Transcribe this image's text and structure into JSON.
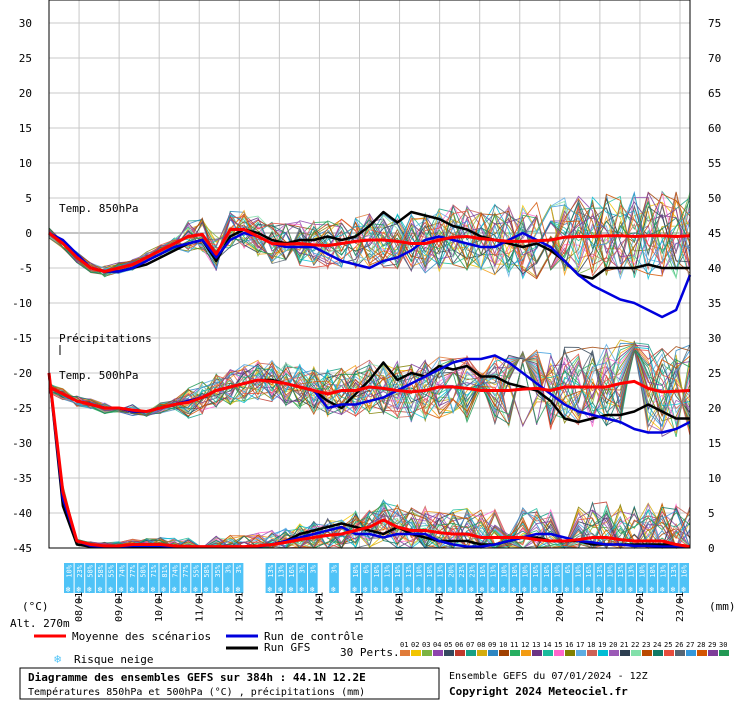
{
  "chart_data": {
    "type": "line",
    "title": "Diagramme des ensembles GEFS sur 384h : 44.1N 12.2E",
    "subtitle": "Températures 850hPa et 500hPa (°C) , précipitations (mm)",
    "run_info": "Ensemble GEFS du 07/01/2024 - 12Z",
    "copyright": "Copyright 2024 Meteociel.fr",
    "left_axis": {
      "unit": "(°C)",
      "ylim": [
        -45,
        30
      ],
      "ticks": [
        30,
        25,
        20,
        15,
        10,
        5,
        0,
        -5,
        -10,
        -15,
        -20,
        -25,
        -30,
        -35,
        -40,
        -45
      ]
    },
    "right_axis": {
      "unit": "(mm)",
      "ylim": [
        0,
        75
      ],
      "ticks": [
        75,
        70,
        65,
        60,
        55,
        50,
        45,
        40,
        35,
        30,
        25,
        20,
        15,
        10,
        5,
        0
      ]
    },
    "altitude": "Alt. 270m",
    "dates": [
      "08/01",
      "09/01",
      "10/01",
      "11/01",
      "12/01",
      "13/01",
      "14/01",
      "15/01",
      "16/01",
      "17/01",
      "18/01",
      "19/01",
      "20/01",
      "21/01",
      "22/01",
      "23/01"
    ],
    "labels": {
      "t850": "Temp. 850hPa",
      "precip": "Précipitations",
      "t500": "Temp. 500hPa"
    },
    "legend": {
      "mean": "Moyenne des scénarios",
      "control": "Run de contrôle",
      "gfs": "Run GFS",
      "snow": "Risque neige",
      "perts": "30 Perts."
    },
    "colors": {
      "mean": "#ff0000",
      "control": "#0000dd",
      "gfs": "#000000",
      "snow_band": "#4fc3f7",
      "grid": "#bbbbbb"
    },
    "member_codes": [
      "01",
      "02",
      "03",
      "04",
      "05",
      "06",
      "07",
      "08",
      "09",
      "10",
      "11",
      "12",
      "13",
      "14",
      "15",
      "16",
      "17",
      "18",
      "19",
      "20",
      "21",
      "22",
      "23",
      "24",
      "25",
      "26",
      "27",
      "28",
      "29",
      "30"
    ],
    "member_colors": [
      "#e07b39",
      "#f2c500",
      "#7cb342",
      "#8e44ad",
      "#34495e",
      "#c0392b",
      "#16a085",
      "#d4ac0d",
      "#2e86c1",
      "#a04000",
      "#27ae60",
      "#f39c12",
      "#6c3483",
      "#1abc9c",
      "#ff66cc",
      "#808000",
      "#5dade2",
      "#cd6155",
      "#00bcd4",
      "#9b59b6",
      "#2c3e50",
      "#82e0aa",
      "#ba4a00",
      "#117a65",
      "#e74c3c",
      "#566573",
      "#3498db",
      "#d35400",
      "#7d3c98",
      "#229954"
    ],
    "snow_risk_percent": [
      "10%",
      "23%",
      "58%",
      "58%",
      "55%",
      "74%",
      "77%",
      "58%",
      "71%",
      "81%",
      "74%",
      "77%",
      "55%",
      "58%",
      "35%",
      "3%",
      "3%",
      "",
      "",
      "13%",
      "13%",
      "16%",
      "3%",
      "3%",
      "",
      "3%",
      "",
      "10%",
      "6%",
      "10%",
      "13%",
      "10%",
      "13%",
      "10%",
      "10%",
      "13%",
      "20%",
      "23%",
      "23%",
      "16%",
      "13%",
      "10%",
      "10%",
      "10%",
      "16%",
      "10%",
      "10%",
      "6%",
      "10%",
      "16%",
      "13%",
      "10%",
      "13%",
      "13%",
      "10%",
      "10%",
      "13%",
      "13%",
      "16%"
    ],
    "series": [
      {
        "name": "Moyenne des scénarios",
        "t850": [
          0,
          -1.5,
          -3.5,
          -5,
          -5.5,
          -5,
          -4.5,
          -3.5,
          -2.5,
          -1.5,
          -0.5,
          -0.2,
          -3,
          0.5,
          0.5,
          -0.5,
          -1.5,
          -1.6,
          -1.5,
          -1.7,
          -1.8,
          -1.5,
          -1.2,
          -1,
          -1,
          -1.2,
          -1.5,
          -1.5,
          -1,
          -0.6,
          -0.5,
          -0.8,
          -1,
          -1.2,
          -1.2,
          -1.1,
          -1,
          -0.6,
          -0.5,
          -0.5,
          -0.4,
          -0.4,
          -0.5,
          -0.4,
          -0.4,
          -0.5,
          -0.4
        ],
        "t500": [
          -22,
          -23,
          -24,
          -24.5,
          -25,
          -25,
          -25.3,
          -25.5,
          -25,
          -24.5,
          -24.2,
          -23.5,
          -22.5,
          -22,
          -21.5,
          -21,
          -21.2,
          -21.5,
          -22,
          -22.5,
          -23,
          -22.5,
          -22.5,
          -22,
          -22.2,
          -22.5,
          -22.7,
          -22.5,
          -22,
          -22,
          -22.2,
          -22.5,
          -22.5,
          -22.5,
          -22.3,
          -22.2,
          -22.5,
          -22,
          -22,
          -22,
          -22,
          -21.5,
          -21.2,
          -22.2,
          -22.7,
          -22.6,
          -22.5
        ],
        "precip": [
          25,
          8,
          1,
          0.5,
          0.3,
          0.3,
          0.5,
          0.5,
          0.5,
          0.3,
          0.2,
          0.2,
          0.2,
          0.2,
          0.2,
          0.3,
          0.5,
          0.8,
          1.2,
          1.5,
          1.8,
          2,
          2.5,
          3,
          4,
          3,
          2.5,
          2.5,
          2.2,
          2,
          2,
          1.5,
          1.5,
          1.5,
          1.5,
          1.2,
          1,
          1,
          1.2,
          1.5,
          1.5,
          1.2,
          1,
          1,
          1,
          0.5,
          0.2
        ]
      },
      {
        "name": "Run de contrôle",
        "t850": [
          0,
          -1,
          -3,
          -5,
          -5.5,
          -5.5,
          -5,
          -4,
          -3,
          -2,
          -1.5,
          -1,
          -3.5,
          -1,
          0,
          -0.5,
          -1.5,
          -2,
          -2,
          -2,
          -3,
          -4,
          -4.5,
          -5,
          -4,
          -3.5,
          -2.5,
          -1,
          -0.5,
          -1,
          -1.5,
          -2,
          -2,
          -1,
          0,
          -1,
          -2,
          -4,
          -6,
          -7.5,
          -8.5,
          -9.5,
          -10,
          -11,
          -12,
          -11,
          -6
        ],
        "t500": [
          -22,
          -23,
          -24,
          -24.5,
          -25,
          -25,
          -25.5,
          -25.5,
          -25,
          -24.5,
          -24,
          -23.5,
          -22.5,
          -22,
          -21.5,
          -21,
          -21.2,
          -21.5,
          -22,
          -22.5,
          -25,
          -24.5,
          -24.5,
          -24,
          -23.5,
          -22.5,
          -21.5,
          -20.5,
          -19.5,
          -18.5,
          -18,
          -18,
          -17.5,
          -18.5,
          -20,
          -21.5,
          -23,
          -24.5,
          -25.5,
          -26,
          -26.5,
          -27,
          -28,
          -28.5,
          -28.5,
          -28,
          -27
        ],
        "precip": [
          25,
          7,
          1,
          0.3,
          0.2,
          0.2,
          0.3,
          0.3,
          0.3,
          0.2,
          0.1,
          0.1,
          0.1,
          0.1,
          0.1,
          0.2,
          0.5,
          1,
          1.5,
          2,
          2.5,
          3,
          2,
          2,
          1.5,
          2,
          2,
          2,
          1,
          0.5,
          0.2,
          0.2,
          0.5,
          1,
          1.5,
          2,
          2,
          1.5,
          1,
          0.8,
          0.5,
          0.5,
          0.3,
          0.3,
          0.2,
          0.2,
          0.1
        ]
      },
      {
        "name": "Run GFS",
        "t850": [
          0,
          -1.5,
          -3.5,
          -5,
          -5.5,
          -5.5,
          -5,
          -4.5,
          -3.5,
          -2.5,
          -1.5,
          -1,
          -4,
          -0.5,
          0.5,
          0,
          -1,
          -1.5,
          -1,
          -1,
          -0.5,
          -1,
          -0.5,
          1,
          3,
          1.5,
          3,
          2.5,
          2,
          1,
          0.5,
          -0.5,
          -1,
          -1.5,
          -2,
          -1.5,
          -2.5,
          -4,
          -6,
          -6.5,
          -5,
          -5,
          -5,
          -4.5,
          -5,
          -5,
          -5
        ],
        "t500": [
          -22,
          -23,
          -24,
          -24.5,
          -25,
          -25,
          -25.5,
          -25.5,
          -25,
          -24.5,
          -24,
          -23.5,
          -22.5,
          -22,
          -21.5,
          -21,
          -21,
          -21.5,
          -22,
          -22.5,
          -24,
          -25,
          -23,
          -21,
          -18.5,
          -21,
          -20,
          -20.5,
          -19,
          -19.5,
          -19,
          -20.5,
          -20.5,
          -21.5,
          -22,
          -22.5,
          -24,
          -26.5,
          -27,
          -26.5,
          -26,
          -26,
          -25.5,
          -24.5,
          -25.5,
          -26.5,
          -26.5
        ],
        "precip": [
          25,
          6,
          0.5,
          0.2,
          0.1,
          0.1,
          0.2,
          0.2,
          0.2,
          0.1,
          0.1,
          0.1,
          0.1,
          0.1,
          0.1,
          0.3,
          0.5,
          1,
          2,
          2.5,
          3,
          3.5,
          3,
          2.5,
          2,
          3,
          2,
          1.5,
          1,
          1,
          1,
          0.5,
          0.5,
          1,
          1.5,
          1.5,
          1,
          1,
          1,
          0.5,
          0.5,
          0.5,
          0.5,
          0.5,
          0.5,
          0.5,
          0.2
        ]
      }
    ]
  }
}
